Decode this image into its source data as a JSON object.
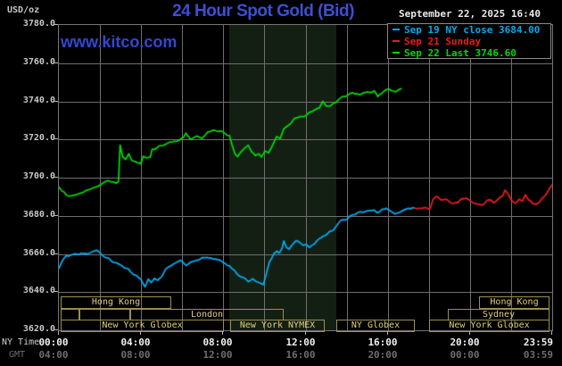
{
  "header": {
    "unit_label": "USD/oz",
    "title": "24 Hour Spot Gold (Bid)",
    "datetime": "September 22, 2025 16:40",
    "watermark": "www.kitco.com"
  },
  "legend": {
    "items": [
      {
        "label": "Sep 19 NY close 3684.00",
        "color": "#00aaee"
      },
      {
        "label": "Sep 21 Sunday",
        "color": "#ea1c1c"
      },
      {
        "label": "Sep 22 Last 3746.60",
        "color": "#00d800"
      }
    ]
  },
  "axes": {
    "ny_time_label": "NY Time",
    "gmt_label": "GMT",
    "y_ticks": [
      "3780.0",
      "3760.0",
      "3740.0",
      "3720.0",
      "3700.0",
      "3680.0",
      "3660.0",
      "3640.0",
      "3620.0"
    ],
    "x_ticks": [
      {
        "hour": 0,
        "ny": "00:00",
        "gmt": "04:00"
      },
      {
        "hour": 4,
        "ny": "04:00",
        "gmt": "08:00"
      },
      {
        "hour": 8,
        "ny": "08:00",
        "gmt": "12:00"
      },
      {
        "hour": 12,
        "ny": "12:00",
        "gmt": "16:00"
      },
      {
        "hour": 16,
        "ny": "16:00",
        "gmt": "20:00"
      },
      {
        "hour": 20,
        "ny": "20:00",
        "gmt": "00:00"
      },
      {
        "hour": 24,
        "ny": "23:59",
        "gmt": "03:59"
      }
    ]
  },
  "sessions": [
    {
      "row": 1,
      "label": "Hong Kong",
      "start": 0.1,
      "end": 5.5
    },
    {
      "row": 1,
      "label": "Hong Kong",
      "start": 20.45,
      "end": 23.87
    },
    {
      "row": 2,
      "label": "",
      "start": 0.1,
      "end": 1.0
    },
    {
      "row": 2,
      "label": "",
      "start": 1.0,
      "end": 3.46
    },
    {
      "row": 2,
      "label": "London",
      "start": 3.46,
      "end": 10.94
    },
    {
      "row": 2,
      "label": "Sydney",
      "start": 18.94,
      "end": 23.87
    },
    {
      "row": 3,
      "label": "New York Globex",
      "start": 0.1,
      "end": 8.04
    },
    {
      "row": 3,
      "label": "New York NYMEX",
      "start": 8.35,
      "end": 12.93
    },
    {
      "row": 3,
      "label": "NY Globex",
      "start": 13.49,
      "end": 17.3
    },
    {
      "row": 3,
      "label": "New York Globex",
      "start": 18.03,
      "end": 23.87
    }
  ],
  "colors": {
    "background": "#000000",
    "grid": "#6e6e6e",
    "shade": "#141f14",
    "session_border": "#9c8f4a",
    "session_text": "#e0ce7c"
  },
  "chart_data": {
    "type": "line",
    "title": "24 Hour Spot Gold (Bid)",
    "ylabel": "USD/oz",
    "xlabel": "NY Time (hours 00:00-23:59)",
    "ylim": [
      3620,
      3780
    ],
    "xlim_hours": [
      0,
      24
    ],
    "y_gridline_step": 20,
    "x_gridline_step_hours": 2,
    "grid": "on",
    "legend_position": "top-right",
    "shaded_band_hours": {
      "start": 8.3,
      "end": 13.5,
      "note": "New York NYMEX session highlight"
    },
    "series": [
      {
        "name": "Sep 19 NY close 3684.00",
        "color": "#00aaee",
        "points": [
          [
            0,
            3652.5
          ],
          [
            0.2,
            3657
          ],
          [
            0.35,
            3659
          ],
          [
            0.6,
            3659.5
          ],
          [
            0.9,
            3659.8
          ],
          [
            1.1,
            3660.4
          ],
          [
            1.4,
            3660
          ],
          [
            1.65,
            3661.3
          ],
          [
            1.85,
            3662
          ],
          [
            2.1,
            3659.5
          ],
          [
            2.3,
            3658
          ],
          [
            2.5,
            3657
          ],
          [
            2.7,
            3655.5
          ],
          [
            2.9,
            3654.8
          ],
          [
            3.1,
            3653.5
          ],
          [
            3.3,
            3652.5
          ],
          [
            3.5,
            3650.5
          ],
          [
            3.76,
            3648.8
          ],
          [
            3.9,
            3647.5
          ],
          [
            4.0,
            3646.5
          ],
          [
            4.19,
            3642.8
          ],
          [
            4.35,
            3646.8
          ],
          [
            4.5,
            3645
          ],
          [
            4.65,
            3647.2
          ],
          [
            4.8,
            3646.2
          ],
          [
            5.0,
            3648
          ],
          [
            5.19,
            3652
          ],
          [
            5.4,
            3653.5
          ],
          [
            5.62,
            3655
          ],
          [
            5.9,
            3656.7
          ],
          [
            6.2,
            3654
          ],
          [
            6.5,
            3656
          ],
          [
            6.9,
            3657.5
          ],
          [
            7.22,
            3658.2
          ],
          [
            7.5,
            3657.3
          ],
          [
            7.8,
            3657
          ],
          [
            8.0,
            3655.5
          ],
          [
            8.3,
            3653.8
          ],
          [
            8.65,
            3649.7
          ],
          [
            8.86,
            3648
          ],
          [
            9.08,
            3647
          ],
          [
            9.21,
            3645.5
          ],
          [
            9.43,
            3647
          ],
          [
            9.6,
            3645.5
          ],
          [
            9.82,
            3644.6
          ],
          [
            9.95,
            3643.9
          ],
          [
            10.1,
            3650
          ],
          [
            10.25,
            3656
          ],
          [
            10.45,
            3660
          ],
          [
            10.6,
            3661.5
          ],
          [
            10.72,
            3660.5
          ],
          [
            10.86,
            3663
          ],
          [
            10.94,
            3666.8
          ],
          [
            11.07,
            3663.5
          ],
          [
            11.2,
            3662.5
          ],
          [
            11.37,
            3665
          ],
          [
            11.54,
            3667
          ],
          [
            11.72,
            3666
          ],
          [
            11.89,
            3664.5
          ],
          [
            12.02,
            3665
          ],
          [
            12.19,
            3663.5
          ],
          [
            12.45,
            3665.5
          ],
          [
            12.67,
            3668
          ],
          [
            12.88,
            3669.5
          ],
          [
            13.06,
            3670.5
          ],
          [
            13.27,
            3672
          ],
          [
            13.49,
            3674.5
          ],
          [
            13.66,
            3677
          ],
          [
            13.84,
            3678
          ],
          [
            14.05,
            3678.5
          ],
          [
            14.3,
            3680.5
          ],
          [
            14.5,
            3681.4
          ],
          [
            14.92,
            3682.3
          ],
          [
            15.35,
            3683
          ],
          [
            15.48,
            3681.6
          ],
          [
            15.92,
            3684
          ],
          [
            16.35,
            3680.9
          ],
          [
            16.78,
            3683
          ],
          [
            16.95,
            3683.8
          ],
          [
            17.3,
            3684
          ]
        ]
      },
      {
        "name": "Sep 21 Sunday",
        "color": "#ea1c1c",
        "points": [
          [
            17.3,
            3684
          ],
          [
            18.07,
            3684
          ],
          [
            18.2,
            3688.5
          ],
          [
            18.4,
            3690.2
          ],
          [
            18.6,
            3688.3
          ],
          [
            18.8,
            3688.7
          ],
          [
            19.0,
            3687.4
          ],
          [
            19.2,
            3686.5
          ],
          [
            19.4,
            3686.9
          ],
          [
            19.6,
            3689
          ],
          [
            19.8,
            3689.3
          ],
          [
            19.95,
            3688.5
          ],
          [
            20.2,
            3686.5
          ],
          [
            20.4,
            3686
          ],
          [
            20.6,
            3685.6
          ],
          [
            20.8,
            3687.7
          ],
          [
            21.0,
            3688.3
          ],
          [
            21.15,
            3686.8
          ],
          [
            21.4,
            3689
          ],
          [
            21.6,
            3690.5
          ],
          [
            21.7,
            3693.4
          ],
          [
            21.9,
            3690.5
          ],
          [
            22.05,
            3687.7
          ],
          [
            22.2,
            3686.5
          ],
          [
            22.4,
            3688.7
          ],
          [
            22.55,
            3687.7
          ],
          [
            22.7,
            3691
          ],
          [
            22.85,
            3688.3
          ],
          [
            23.05,
            3686.5
          ],
          [
            23.2,
            3686
          ],
          [
            23.4,
            3687.4
          ],
          [
            23.6,
            3690
          ],
          [
            23.8,
            3693
          ],
          [
            23.98,
            3696
          ]
        ]
      },
      {
        "name": "Sep 22 Last 3746.60",
        "color": "#00d800",
        "points": [
          [
            0,
            3695
          ],
          [
            0.15,
            3693
          ],
          [
            0.35,
            3691
          ],
          [
            0.6,
            3690.5
          ],
          [
            0.85,
            3691
          ],
          [
            1.1,
            3692
          ],
          [
            1.4,
            3693.5
          ],
          [
            1.64,
            3694.5
          ],
          [
            1.9,
            3695.5
          ],
          [
            2.03,
            3696.3
          ],
          [
            2.2,
            3697.5
          ],
          [
            2.4,
            3698.4
          ],
          [
            2.6,
            3697.8
          ],
          [
            2.8,
            3697
          ],
          [
            2.9,
            3698
          ],
          [
            2.98,
            3717
          ],
          [
            3.1,
            3711
          ],
          [
            3.25,
            3709.5
          ],
          [
            3.4,
            3712.5
          ],
          [
            3.55,
            3709
          ],
          [
            3.8,
            3708
          ],
          [
            3.98,
            3707.2
          ],
          [
            4.11,
            3711.3
          ],
          [
            4.3,
            3710.5
          ],
          [
            4.45,
            3710.8
          ],
          [
            4.54,
            3714.9
          ],
          [
            4.76,
            3715.5
          ],
          [
            4.97,
            3716.8
          ],
          [
            5.2,
            3717.5
          ],
          [
            5.4,
            3718.6
          ],
          [
            5.62,
            3719
          ],
          [
            5.84,
            3719.5
          ],
          [
            6.05,
            3721
          ],
          [
            6.18,
            3723.3
          ],
          [
            6.4,
            3720
          ],
          [
            6.7,
            3721.8
          ],
          [
            6.96,
            3720.5
          ],
          [
            7.26,
            3724
          ],
          [
            7.57,
            3724.8
          ],
          [
            7.87,
            3724.5
          ],
          [
            8.08,
            3723
          ],
          [
            8.3,
            3722
          ],
          [
            8.43,
            3717
          ],
          [
            8.56,
            3712.6
          ],
          [
            8.69,
            3711
          ],
          [
            8.86,
            3713.5
          ],
          [
            9.04,
            3715.5
          ],
          [
            9.21,
            3717
          ],
          [
            9.38,
            3713.5
          ],
          [
            9.56,
            3711.5
          ],
          [
            9.73,
            3712.5
          ],
          [
            9.86,
            3710.8
          ],
          [
            10.03,
            3714
          ],
          [
            10.2,
            3713
          ],
          [
            10.38,
            3716.5
          ],
          [
            10.59,
            3721.5
          ],
          [
            10.77,
            3720.5
          ],
          [
            10.94,
            3725.5
          ],
          [
            11.11,
            3727
          ],
          [
            11.29,
            3728.5
          ],
          [
            11.46,
            3731
          ],
          [
            11.63,
            3731.5
          ],
          [
            11.81,
            3732
          ],
          [
            12.02,
            3732.5
          ],
          [
            12.24,
            3734.5
          ],
          [
            12.45,
            3735.5
          ],
          [
            12.67,
            3736.5
          ],
          [
            12.84,
            3740
          ],
          [
            13.01,
            3737.5
          ],
          [
            13.19,
            3737.5
          ],
          [
            13.36,
            3739
          ],
          [
            13.49,
            3739.5
          ],
          [
            13.62,
            3741
          ],
          [
            13.79,
            3742.5
          ],
          [
            13.97,
            3742.5
          ],
          [
            14.14,
            3744
          ],
          [
            14.31,
            3744.5
          ],
          [
            14.49,
            3744
          ],
          [
            14.66,
            3743.5
          ],
          [
            14.83,
            3744.5
          ],
          [
            15.01,
            3745
          ],
          [
            15.18,
            3744.5
          ],
          [
            15.35,
            3745.5
          ],
          [
            15.52,
            3742.5
          ],
          [
            15.7,
            3744
          ],
          [
            15.87,
            3745.8
          ],
          [
            16.04,
            3746.5
          ],
          [
            16.22,
            3745.5
          ],
          [
            16.39,
            3745
          ],
          [
            16.52,
            3746
          ],
          [
            16.65,
            3746.6
          ]
        ]
      }
    ]
  }
}
